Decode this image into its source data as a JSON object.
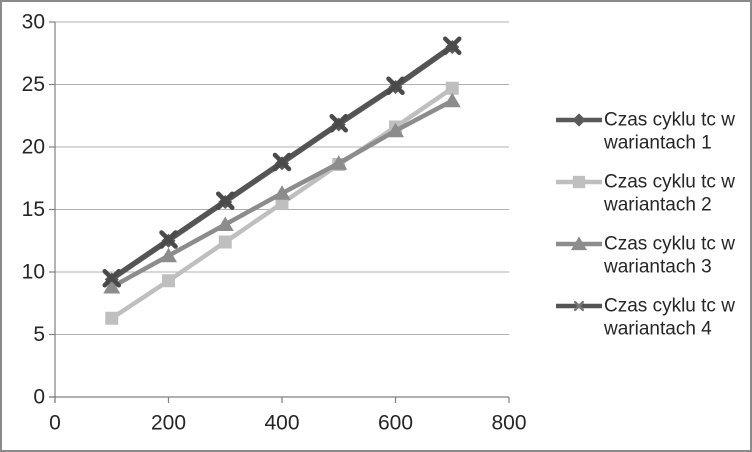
{
  "chart_data": {
    "type": "line",
    "title": "",
    "xlabel": "",
    "ylabel": "",
    "x": [
      100,
      200,
      300,
      400,
      500,
      600,
      700
    ],
    "xlim": [
      0,
      800
    ],
    "ylim": [
      0,
      30
    ],
    "xticks": [
      0,
      200,
      400,
      600,
      800
    ],
    "yticks": [
      0,
      5,
      10,
      15,
      20,
      25,
      30
    ],
    "grid": "horizontal",
    "legend_position": "right",
    "series": [
      {
        "name": "Czas cyklu tc w wariantach  1",
        "marker": "diamond",
        "color": "#595959",
        "values": [
          9.4,
          12.5,
          15.6,
          18.7,
          21.8,
          24.8,
          28.0
        ]
      },
      {
        "name": "Czas cyklu tc w wariantach  2",
        "marker": "square",
        "color": "#bfbfbf",
        "values": [
          6.3,
          9.3,
          12.4,
          15.5,
          18.6,
          21.6,
          24.7
        ]
      },
      {
        "name": "Czas cyklu tc w wariantach  3",
        "marker": "triangle",
        "color": "#8c8c8c",
        "values": [
          8.8,
          11.3,
          13.8,
          16.3,
          18.7,
          21.3,
          23.7
        ]
      },
      {
        "name": "Czas cyklu tc w wariantach  4",
        "marker": "x",
        "color": "#545454",
        "values": [
          9.5,
          12.6,
          15.7,
          18.8,
          21.9,
          24.9,
          28.1
        ]
      }
    ],
    "legend": [
      {
        "line1": "Czas cyklu tc w",
        "line2": "wariantach  1"
      },
      {
        "line1": "Czas cyklu tc w",
        "line2": "wariantach  2"
      },
      {
        "line1": "Czas cyklu tc w",
        "line2": "wariantach  3"
      },
      {
        "line1": "Czas cyklu tc w",
        "line2": "wariantach  4"
      }
    ]
  },
  "colors": {
    "background": "#ffffff",
    "frame_border": "#8a8a8a",
    "gridline": "#b0b0b0",
    "axis": "#808080",
    "tick_label": "#262626",
    "legend_text": "#262626",
    "x_marker": "#4a4a4a",
    "legend_x_glyph": "#787878"
  }
}
